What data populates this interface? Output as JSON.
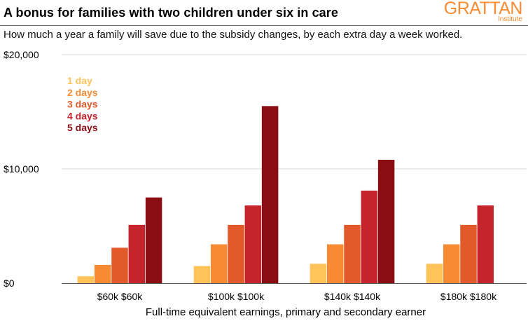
{
  "header": {
    "title": "A bonus for families with two children under six in care",
    "subtitle": "How much a year a family will save due to the subsidy changes, by each extra day a week worked."
  },
  "logo": {
    "name": "GRATTAN",
    "sub": "Institute"
  },
  "colors": {
    "brand_orange": "#f68b33",
    "gridline": "#d9d9d9",
    "axis": "#555555"
  },
  "chart_data": {
    "type": "bar",
    "xlabel": "Full-time equivalent earnings, primary and secondary earner",
    "ylabel": "",
    "ylim": [
      0,
      20000
    ],
    "yticks": [
      0,
      10000,
      20000
    ],
    "ytick_labels": [
      "$0",
      "$10,000",
      "$20,000"
    ],
    "grid": true,
    "legend_position": "top-left",
    "categories": [
      "$60k $60k",
      "$100k $100k",
      "$140k $140k",
      "$180k $180k"
    ],
    "series": [
      {
        "name": "1 day",
        "color": "#ffc35a",
        "values": [
          600,
          1500,
          1700,
          1700
        ]
      },
      {
        "name": "2 days",
        "color": "#f68b33",
        "values": [
          1600,
          3400,
          3400,
          3400
        ]
      },
      {
        "name": "3 days",
        "color": "#e25a29",
        "values": [
          3100,
          5100,
          5100,
          5100
        ]
      },
      {
        "name": "4 days",
        "color": "#c6242c",
        "values": [
          5100,
          6800,
          8100,
          6800
        ]
      },
      {
        "name": "5 days",
        "color": "#8b0d14",
        "values": [
          7500,
          15500,
          10800,
          null
        ]
      }
    ]
  }
}
